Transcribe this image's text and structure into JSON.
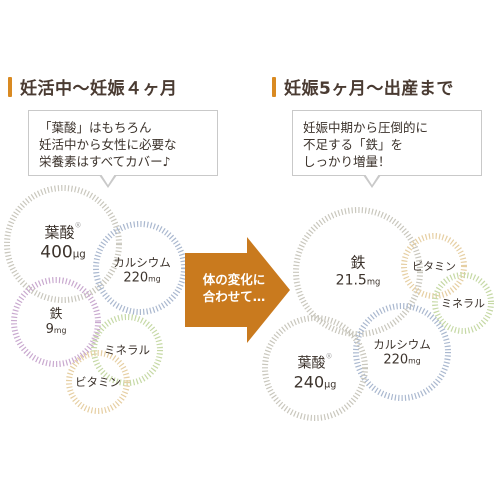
{
  "left": {
    "heading": "妊活中～妊娠４ヶ月",
    "bubble_lines": [
      "「葉酸」はもちろん",
      "妊活中から女性に必要な",
      "栄養素はすべてカバー♪"
    ],
    "circles": [
      {
        "name": "葉酸",
        "reg": "®",
        "amount": "400",
        "unit": "μg"
      },
      {
        "name": "カルシウム",
        "amount": "220",
        "unit": "mg"
      },
      {
        "name": "鉄",
        "amount": "9",
        "unit": "mg"
      },
      {
        "name": "ミネラル"
      },
      {
        "name": "ビタミン"
      }
    ]
  },
  "arrow": {
    "lines": [
      "体の変化に",
      "合わせて…"
    ],
    "color": "#c97a1e"
  },
  "right": {
    "heading": "妊娠5ヶ月～出産まで",
    "bubble_lines": [
      "妊娠中期から圧倒的に",
      "不足する「鉄」を",
      "しっかり増量！"
    ],
    "circles": [
      {
        "name": "鉄",
        "amount": "21.5",
        "unit": "mg"
      },
      {
        "name": "ビタミン"
      },
      {
        "name": "ミネラル"
      },
      {
        "name": "カルシウム",
        "amount": "220",
        "unit": "mg"
      },
      {
        "name": "葉酸",
        "reg": "®",
        "amount": "240",
        "unit": "μg"
      }
    ]
  },
  "colors": {
    "accent": "#d98a22",
    "folic_ring": "#c9c7bd",
    "calcium_ring": "#aab8cf",
    "iron_ring": "#c9a9cf",
    "mineral_ring": "#c6d9a6",
    "vitamin_ring": "#e6cfa3"
  }
}
